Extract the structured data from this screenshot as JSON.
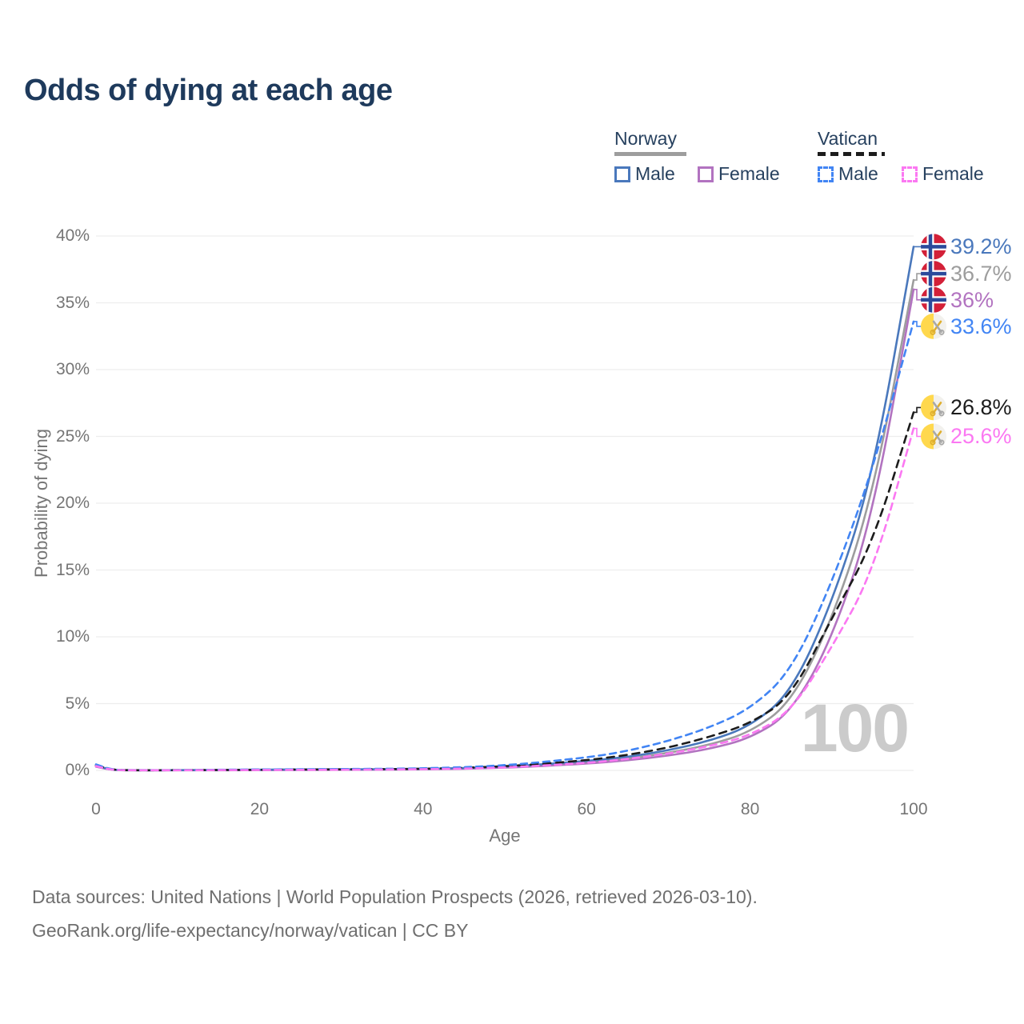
{
  "title": "Odds of dying at each age",
  "legend": {
    "norway": {
      "label": "Norway",
      "male": "Male",
      "female": "Female"
    },
    "vatican": {
      "label": "Vatican",
      "male": "Male",
      "female": "Female"
    }
  },
  "footer": {
    "line1": "Data sources: United Nations | World Population Prospects (2026, retrieved 2026-03-10).",
    "line2": "GeoRank.org/life-expectancy/norway/vatican | CC BY"
  },
  "chart_data": {
    "type": "line",
    "title": "Odds of dying at each age",
    "xlabel": "Age",
    "ylabel": "Probability of dying",
    "xlim": [
      0,
      100
    ],
    "ylim": [
      0,
      40
    ],
    "grid": "horizontal",
    "legend_position": "top-right",
    "watermark": "100",
    "x_ticks": [
      {
        "value": 0,
        "label": "0"
      },
      {
        "value": 20,
        "label": "20"
      },
      {
        "value": 40,
        "label": "40"
      },
      {
        "value": 60,
        "label": "60"
      },
      {
        "value": 80,
        "label": "80"
      },
      {
        "value": 100,
        "label": "100"
      }
    ],
    "y_ticks": [
      {
        "value": 0,
        "label": "0%"
      },
      {
        "value": 5,
        "label": "5%"
      },
      {
        "value": 10,
        "label": "10%"
      },
      {
        "value": 15,
        "label": "15%"
      },
      {
        "value": 20,
        "label": "20%"
      },
      {
        "value": 25,
        "label": "25%"
      },
      {
        "value": 30,
        "label": "30%"
      },
      {
        "value": 35,
        "label": "35%"
      },
      {
        "value": 40,
        "label": "40%"
      }
    ],
    "x": [
      0,
      2,
      5,
      10,
      20,
      30,
      40,
      50,
      60,
      65,
      70,
      75,
      80,
      85,
      90,
      95,
      100
    ],
    "series": [
      {
        "name": "Norway Total",
        "id": "norway-total",
        "country": "norway",
        "color": "#9d9d9d",
        "dash": null,
        "flag": "norway",
        "end_label": "36.7%",
        "label_dy": -8,
        "values": [
          0.31,
          0.018,
          0.01,
          0.01,
          0.04,
          0.06,
          0.09,
          0.22,
          0.6,
          0.88,
          1.3,
          1.9,
          2.85,
          5.05,
          11.2,
          20.5,
          36.7
        ]
      },
      {
        "name": "Norway Female",
        "id": "norway-female",
        "country": "norway",
        "color": "#b273c0",
        "dash": null,
        "flag": "norway",
        "end_label": "36%",
        "label_dy": 13,
        "values": [
          0.28,
          0.016,
          0.009,
          0.009,
          0.02,
          0.04,
          0.07,
          0.18,
          0.5,
          0.75,
          1.1,
          1.6,
          2.4,
          4.3,
          9.8,
          19.0,
          36.0
        ]
      },
      {
        "name": "Norway Male",
        "id": "norway-male",
        "country": "norway",
        "color": "#4a78bc",
        "dash": null,
        "flag": "norway",
        "end_label": "39.2%",
        "label_dy": 0,
        "values": [
          0.35,
          0.02,
          0.012,
          0.012,
          0.06,
          0.08,
          0.1,
          0.25,
          0.7,
          1.0,
          1.5,
          2.2,
          3.3,
          5.8,
          12.5,
          22.0,
          39.2
        ]
      },
      {
        "name": "Vatican Total",
        "id": "vatican-total",
        "country": "vatican",
        "color": "#1c1c1c",
        "dash": [
          9,
          7
        ],
        "flag": "vatican",
        "end_label": "26.8%",
        "label_dy": -6,
        "values": [
          0.4,
          0.025,
          0.012,
          0.015,
          0.05,
          0.08,
          0.11,
          0.28,
          0.75,
          1.15,
          1.7,
          2.5,
          3.5,
          5.5,
          11.4,
          17.0,
          26.8
        ]
      },
      {
        "name": "Vatican Male",
        "id": "vatican-male",
        "country": "vatican",
        "color": "#4285f4",
        "dash": [
          8,
          6
        ],
        "flag": "vatican",
        "end_label": "33.6%",
        "label_dy": 6,
        "values": [
          0.45,
          0.03,
          0.015,
          0.02,
          0.07,
          0.1,
          0.14,
          0.35,
          0.95,
          1.45,
          2.2,
          3.2,
          4.6,
          7.4,
          14.0,
          22.5,
          33.6
        ]
      },
      {
        "name": "Vatican Female",
        "id": "vatican-female",
        "country": "vatican",
        "color": "#fb78f2",
        "dash": [
          8,
          6
        ],
        "flag": "vatican",
        "end_label": "25.6%",
        "label_dy": 10,
        "values": [
          0.32,
          0.02,
          0.01,
          0.012,
          0.03,
          0.05,
          0.08,
          0.2,
          0.55,
          0.85,
          1.25,
          1.8,
          2.6,
          4.4,
          9.2,
          14.8,
          25.6
        ]
      }
    ],
    "colors": {
      "norway_male": "#4a78bc",
      "norway_female": "#b273c0",
      "norway_total": "#9d9d9d",
      "vatican_male": "#4285f4",
      "vatican_female": "#fb78f2",
      "vatican_total": "#1c1c1c",
      "grid": "#ededed",
      "axis_text": "#757575",
      "title_text": "#1e3a5c",
      "watermark": "#cbcbcb"
    }
  }
}
